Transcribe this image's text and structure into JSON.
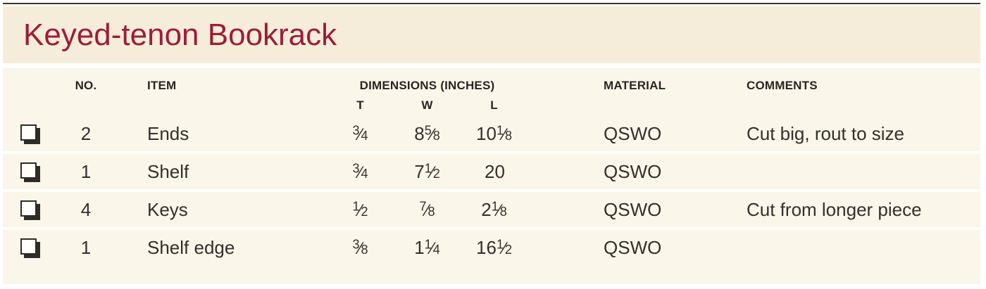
{
  "title": "Keyed-tenon Bookrack",
  "colors": {
    "accent": "#9d1c39",
    "band": "#f5edd9",
    "tablebg": "#fbf6ea",
    "rule": "#3e362f",
    "sep": "#fffef8"
  },
  "icons": {
    "row_marker": "unchecked-checkbox"
  },
  "table": {
    "headers": {
      "no": "NO.",
      "item": "ITEM",
      "dimensions": "DIMENSIONS (INCHES)",
      "t": "T",
      "w": "W",
      "l": "L",
      "material": "MATERIAL",
      "comments": "COMMENTS"
    },
    "rows": [
      {
        "no": "2",
        "item": "Ends",
        "t": {
          "whole": "",
          "num": "3",
          "slash": "⁄",
          "den": "4"
        },
        "w": {
          "whole": "8",
          "num": "5",
          "slash": "⁄",
          "den": "8"
        },
        "l": {
          "whole": "10",
          "num": "1",
          "slash": "⁄",
          "den": "8"
        },
        "material": "QSWO",
        "comments": "Cut big, rout to size"
      },
      {
        "no": "1",
        "item": "Shelf",
        "t": {
          "whole": "",
          "num": "3",
          "slash": "⁄",
          "den": "4"
        },
        "w": {
          "whole": "7",
          "num": "1",
          "slash": "⁄",
          "den": "2"
        },
        "l": {
          "whole": "20",
          "num": "",
          "slash": "",
          "den": ""
        },
        "material": "QSWO",
        "comments": ""
      },
      {
        "no": "4",
        "item": "Keys",
        "t": {
          "whole": "",
          "num": "1",
          "slash": "⁄",
          "den": "2"
        },
        "w": {
          "whole": "",
          "num": "7",
          "slash": "⁄",
          "den": "8"
        },
        "l": {
          "whole": "2",
          "num": "1",
          "slash": "⁄",
          "den": "8"
        },
        "material": "QSWO",
        "comments": "Cut from longer piece"
      },
      {
        "no": "1",
        "item": "Shelf edge",
        "t": {
          "whole": "",
          "num": "3",
          "slash": "⁄",
          "den": "8"
        },
        "w": {
          "whole": "1",
          "num": "1",
          "slash": "⁄",
          "den": "4"
        },
        "l": {
          "whole": "16",
          "num": "1",
          "slash": "⁄",
          "den": "2"
        },
        "material": "QSWO",
        "comments": ""
      }
    ]
  }
}
